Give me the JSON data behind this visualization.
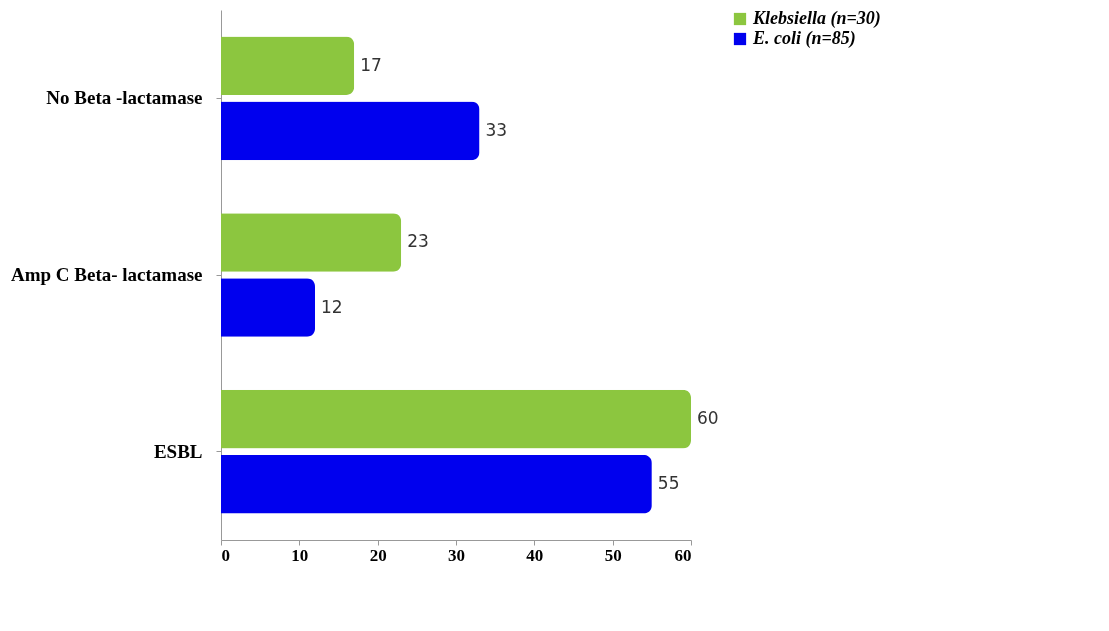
{
  "chart_data": {
    "type": "bar",
    "orientation": "horizontal",
    "categories": [
      "No Beta -lactamase",
      "Amp C Beta- lactamase",
      "ESBL"
    ],
    "series": [
      {
        "name": "Klebsiella (n=30)",
        "color": "#8cc63f",
        "values": [
          17,
          23,
          60
        ]
      },
      {
        "name": "E. coli (n=85)",
        "color": "#0000ee",
        "values": [
          33,
          12,
          55
        ]
      }
    ],
    "xlim": [
      0,
      60
    ],
    "xticks": [
      0,
      10,
      20,
      30,
      40,
      50,
      60
    ],
    "data_labels": true,
    "grid": false,
    "legend": "right"
  }
}
